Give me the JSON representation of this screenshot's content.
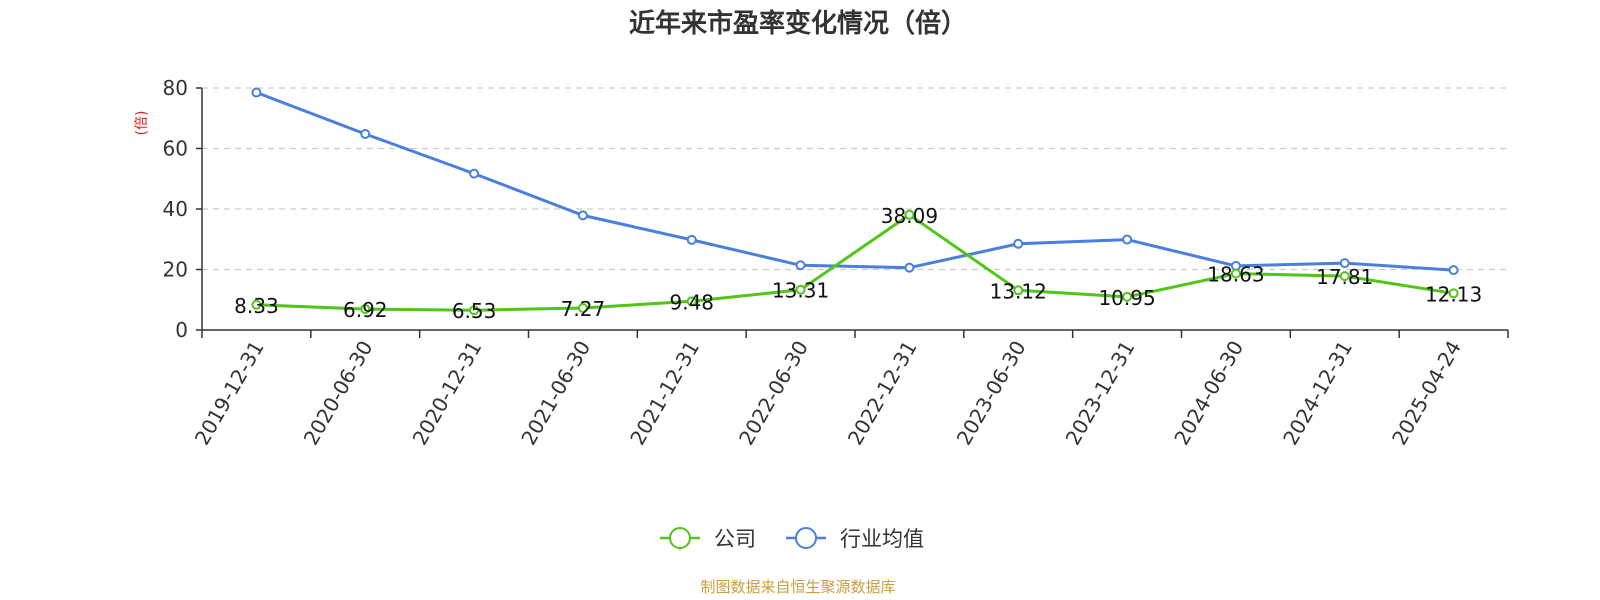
{
  "chart_data": {
    "type": "line",
    "title": "近年来市盈率变化情况（倍）",
    "ylabel": "(倍)",
    "ylim": [
      0,
      80
    ],
    "yticks": [
      0,
      20,
      40,
      60,
      80
    ],
    "grid": true,
    "legend_position": "bottom",
    "categories": [
      "2019-12-31",
      "2020-06-30",
      "2020-12-31",
      "2021-06-30",
      "2021-12-31",
      "2022-06-30",
      "2022-12-31",
      "2023-06-30",
      "2023-12-31",
      "2024-06-30",
      "2024-12-31",
      "2025-04-24"
    ],
    "series": [
      {
        "name": "公司",
        "color": "#52c41a",
        "values": [
          8.33,
          6.92,
          6.53,
          7.27,
          9.48,
          13.31,
          38.09,
          13.12,
          10.95,
          18.63,
          17.81,
          12.13
        ],
        "labels": [
          "8.33",
          "6.92",
          "6.53",
          "7.27",
          "9.48",
          "13.31",
          "38.09",
          "13.12",
          "10.95",
          "18.63",
          "17.81",
          "12.13"
        ]
      },
      {
        "name": "行业均值",
        "color": "#4a7fdb",
        "values": [
          78.5,
          64.8,
          51.7,
          37.9,
          29.8,
          21.4,
          20.6,
          28.5,
          29.9,
          21.2,
          22.1,
          19.8
        ]
      }
    ],
    "source": "制图数据来自恒生聚源数据库",
    "colors": {
      "ylabel": "#e02020",
      "source": "#c8a03c",
      "grid": "#cccccc",
      "axis": "#333333"
    }
  }
}
